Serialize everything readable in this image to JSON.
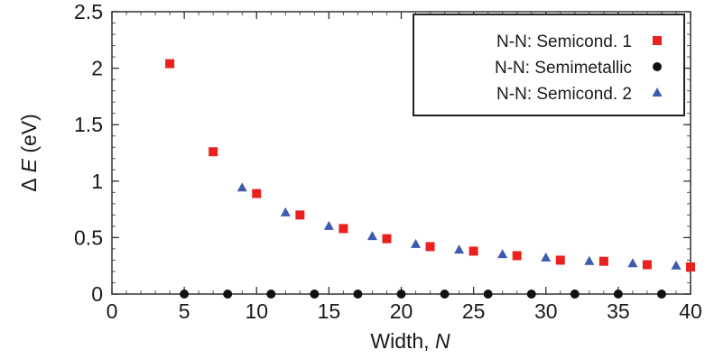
{
  "chart_data": {
    "type": "scatter",
    "xlabel_prefix": "Width, ",
    "xlabel_var": "N",
    "ylabel_prefix": "Δ",
    "ylabel_var": "E",
    "ylabel_suffix": " (eV)",
    "xlim": [
      0,
      40
    ],
    "ylim": [
      0,
      2.5
    ],
    "xticks": [
      0,
      5,
      10,
      15,
      20,
      25,
      30,
      35,
      40
    ],
    "yticks": [
      0,
      0.5,
      1,
      1.5,
      2,
      2.5
    ],
    "xtick_labels": [
      "0",
      "5",
      "10",
      "15",
      "20",
      "25",
      "30",
      "35",
      "40"
    ],
    "ytick_labels": [
      "0",
      "0.5",
      "1",
      "1.5",
      "2",
      "2.5"
    ],
    "x_minor_step": 1,
    "y_minor_step": 0.1,
    "grid": false,
    "legend_position": "top-right",
    "series": [
      {
        "name": "N-N: Semicond. 1",
        "marker": "square",
        "color": "#e8211f",
        "x": [
          4,
          7,
          10,
          13,
          16,
          19,
          22,
          25,
          28,
          31,
          34,
          37,
          40
        ],
        "y": [
          2.04,
          1.26,
          0.89,
          0.7,
          0.58,
          0.49,
          0.42,
          0.38,
          0.34,
          0.3,
          0.29,
          0.26,
          0.24
        ]
      },
      {
        "name": "N-N: Semimetallic",
        "marker": "circle",
        "color": "#111111",
        "x": [
          5,
          8,
          11,
          14,
          17,
          20,
          23,
          26,
          29,
          32,
          35,
          38
        ],
        "y": [
          0,
          0,
          0,
          0,
          0,
          0,
          0,
          0,
          0,
          0,
          0,
          0
        ]
      },
      {
        "name": "N-N: Semicond. 2",
        "marker": "triangle",
        "color": "#3d5aae",
        "x": [
          9,
          12,
          15,
          18,
          21,
          24,
          27,
          30,
          33,
          36,
          39
        ],
        "y": [
          0.94,
          0.72,
          0.6,
          0.51,
          0.44,
          0.39,
          0.35,
          0.32,
          0.29,
          0.27,
          0.25
        ]
      }
    ]
  }
}
